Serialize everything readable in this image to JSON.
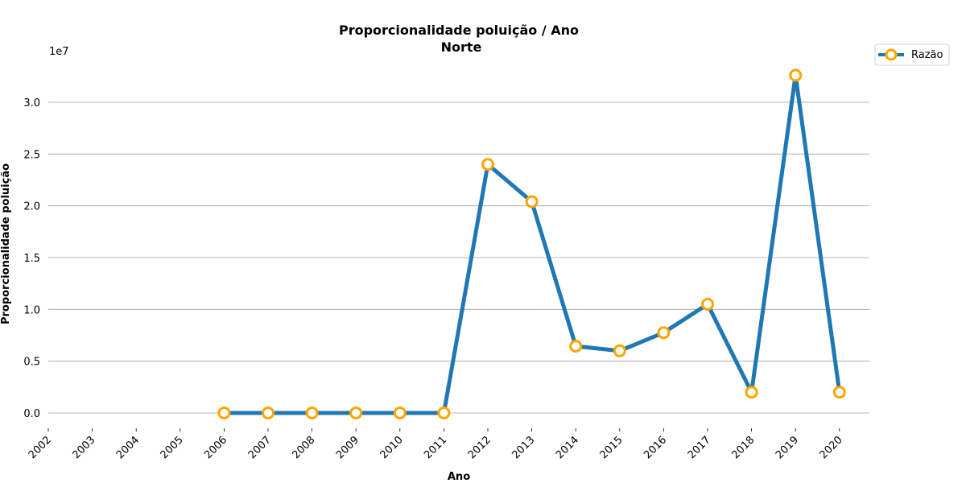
{
  "chart_data": {
    "type": "line",
    "title": "Proporcionalidade poluição / Ano",
    "subtitle": "Norte",
    "xlabel": "Ano",
    "ylabel": "Proporcionalidade poluição",
    "y_offset_label": "1e7",
    "x": [
      "2002",
      "2003",
      "2004",
      "2005",
      "2006",
      "2007",
      "2008",
      "2009",
      "2010",
      "2011",
      "2012",
      "2013",
      "2014",
      "2015",
      "2016",
      "2017",
      "2018",
      "2019",
      "2020"
    ],
    "series": [
      {
        "name": "Razão",
        "x": [
          "2006",
          "2007",
          "2008",
          "2009",
          "2010",
          "2011",
          "2012",
          "2013",
          "2014",
          "2015",
          "2016",
          "2017",
          "2018",
          "2019",
          "2020"
        ],
        "values": [
          0,
          0,
          0,
          0,
          0,
          0,
          2.4,
          2.04,
          0.645,
          0.6,
          0.775,
          1.05,
          0.2,
          3.26,
          0.2
        ],
        "line_color": "#1f77b4",
        "marker_edge_color": "#ffa500",
        "marker_face_color": "#ffffff"
      }
    ],
    "y_ticks": [
      0.0,
      0.5,
      1.0,
      1.5,
      2.0,
      2.5,
      3.0
    ],
    "y_tick_labels": [
      "0.0",
      "0.5",
      "1.0",
      "1.5",
      "2.0",
      "2.5",
      "3.0"
    ],
    "ylim": [
      -0.15,
      3.45
    ],
    "grid": "horizontal",
    "grid_color": "#a0a0a0",
    "legend": {
      "placement": "outside-top-right",
      "entries": [
        "Razão"
      ]
    }
  }
}
